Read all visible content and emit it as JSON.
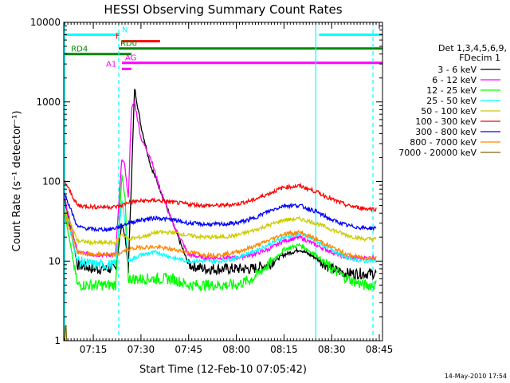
{
  "chart_data": {
    "type": "line",
    "title": "HESSI Observing Summary Count Rates",
    "xlabel": "Start Time (12-Feb-10 07:05:42)",
    "ylabel": "Count Rate (s⁻¹ detector⁻¹)",
    "yscale": "log",
    "ylim": [
      1,
      10000
    ],
    "xlim": [
      "07:05:42",
      "08:46:00"
    ],
    "x_ticks": [
      "07:15",
      "07:30",
      "07:45",
      "08:00",
      "08:15",
      "08:30",
      "08:45"
    ],
    "y_ticks": [
      "1",
      "10",
      "100",
      "1000",
      "10000"
    ],
    "legend_title": [
      "Det 1,3,4,5,6,9,",
      "FDecim 1"
    ],
    "legend_position": "right",
    "series": [
      {
        "name": "3 - 6 keV",
        "color": "#000000",
        "x": [
          "07:06",
          "07:10",
          "07:15",
          "07:20",
          "07:22",
          "07:24",
          "07:25",
          "07:26",
          "07:27",
          "07:28",
          "07:30",
          "07:33",
          "07:36",
          "07:40",
          "07:45",
          "07:50",
          "07:55",
          "08:00",
          "08:05",
          "08:10",
          "08:15",
          "08:20",
          "08:25",
          "08:30",
          "08:35",
          "08:40",
          "08:44"
        ],
        "y": [
          60,
          9,
          8,
          8,
          8,
          30,
          20,
          8,
          100,
          1500,
          500,
          160,
          80,
          30,
          9,
          8,
          8,
          8,
          8,
          9,
          12,
          14,
          11,
          8,
          7,
          7,
          7
        ]
      },
      {
        "name": "6 - 12 keV",
        "color": "#ff00ff",
        "x": [
          "07:06",
          "07:10",
          "07:15",
          "07:20",
          "07:22",
          "07:24",
          "07:25",
          "07:26",
          "07:27",
          "07:28",
          "07:30",
          "07:33",
          "07:36",
          "07:40",
          "07:45",
          "07:50",
          "07:55",
          "08:00",
          "08:05",
          "08:10",
          "08:15",
          "08:20",
          "08:25",
          "08:30",
          "08:35",
          "08:40",
          "08:44"
        ],
        "y": [
          60,
          13,
          12,
          12,
          12,
          200,
          150,
          60,
          800,
          1000,
          350,
          200,
          80,
          30,
          12,
          11,
          11,
          11,
          12,
          14,
          18,
          20,
          16,
          13,
          11,
          11,
          11
        ]
      },
      {
        "name": "12 - 25 keV",
        "color": "#00ff00",
        "x": [
          "07:06",
          "07:10",
          "07:15",
          "07:20",
          "07:22",
          "07:24",
          "07:25",
          "07:26",
          "07:28",
          "07:30",
          "07:35",
          "07:40",
          "07:45",
          "07:50",
          "07:55",
          "08:00",
          "08:05",
          "08:10",
          "08:15",
          "08:20",
          "08:25",
          "08:30",
          "08:35",
          "08:40",
          "08:44"
        ],
        "y": [
          40,
          5,
          5,
          5,
          5,
          120,
          60,
          6,
          6,
          6,
          6,
          6,
          5,
          5,
          5,
          5,
          6,
          9,
          14,
          16,
          12,
          8,
          6,
          5,
          5
        ]
      },
      {
        "name": "25 - 50 keV",
        "color": "#00ffff",
        "x": [
          "07:06",
          "07:10",
          "07:15",
          "07:20",
          "07:22",
          "07:24",
          "07:25",
          "07:26",
          "07:30",
          "07:35",
          "07:40",
          "07:45",
          "07:50",
          "07:55",
          "08:00",
          "08:05",
          "08:10",
          "08:15",
          "08:20",
          "08:25",
          "08:30",
          "08:35",
          "08:40",
          "08:44"
        ],
        "y": [
          45,
          10,
          9,
          9,
          9,
          60,
          30,
          10,
          12,
          13,
          11,
          10,
          10,
          10,
          11,
          13,
          16,
          20,
          22,
          18,
          14,
          11,
          10,
          10
        ]
      },
      {
        "name": "50 - 100 keV",
        "color": "#cccc00",
        "x": [
          "07:06",
          "07:10",
          "07:15",
          "07:20",
          "07:22",
          "07:24",
          "07:26",
          "07:30",
          "07:35",
          "07:40",
          "07:45",
          "07:50",
          "07:55",
          "08:00",
          "08:05",
          "08:10",
          "08:15",
          "08:20",
          "08:25",
          "08:30",
          "08:35",
          "08:40",
          "08:44"
        ],
        "y": [
          45,
          18,
          17,
          17,
          17,
          22,
          19,
          20,
          23,
          23,
          21,
          20,
          20,
          21,
          24,
          28,
          33,
          34,
          30,
          25,
          21,
          19,
          19
        ]
      },
      {
        "name": "100 - 300 keV",
        "color": "#ff0000",
        "x": [
          "07:06",
          "07:10",
          "07:15",
          "07:20",
          "07:22",
          "07:24",
          "07:26",
          "07:30",
          "07:35",
          "07:40",
          "07:45",
          "07:50",
          "07:55",
          "08:00",
          "08:05",
          "08:10",
          "08:15",
          "08:20",
          "08:25",
          "08:30",
          "08:35",
          "08:40",
          "08:44"
        ],
        "y": [
          100,
          50,
          48,
          48,
          48,
          50,
          55,
          57,
          58,
          55,
          52,
          50,
          50,
          52,
          58,
          70,
          85,
          88,
          75,
          60,
          50,
          46,
          45
        ]
      },
      {
        "name": "300 - 800 keV",
        "color": "#0000ff",
        "x": [
          "07:06",
          "07:10",
          "07:15",
          "07:20",
          "07:22",
          "07:24",
          "07:26",
          "07:30",
          "07:35",
          "07:40",
          "07:45",
          "07:50",
          "07:55",
          "08:00",
          "08:05",
          "08:10",
          "08:15",
          "08:20",
          "08:25",
          "08:30",
          "08:35",
          "08:40",
          "08:44"
        ],
        "y": [
          70,
          27,
          25,
          25,
          26,
          28,
          30,
          33,
          35,
          33,
          30,
          29,
          29,
          30,
          34,
          42,
          50,
          50,
          42,
          33,
          28,
          26,
          26
        ]
      },
      {
        "name": "800 - 7000 keV",
        "color": "#ff8800",
        "x": [
          "07:06",
          "07:10",
          "07:15",
          "07:20",
          "07:22",
          "07:24",
          "07:26",
          "07:30",
          "07:35",
          "07:40",
          "07:45",
          "07:50",
          "07:55",
          "08:00",
          "08:05",
          "08:10",
          "08:15",
          "08:20",
          "08:25",
          "08:30",
          "08:35",
          "08:40",
          "08:44"
        ],
        "y": [
          40,
          13,
          12,
          12,
          12,
          13,
          14,
          15,
          15,
          14,
          13,
          12,
          12,
          13,
          15,
          18,
          22,
          23,
          19,
          15,
          12,
          11,
          11
        ]
      },
      {
        "name": "7000 - 20000 keV",
        "color": "#886600",
        "x": [
          "07:06",
          "07:06:20",
          "07:06:40"
        ],
        "y": [
          1,
          2,
          1
        ]
      }
    ],
    "state_bars": [
      {
        "label": "N",
        "color": "#00ffff",
        "y": 7000,
        "segments": [
          [
            "07:05:42",
            "07:23:00"
          ],
          [
            "08:26:00",
            "08:46:00"
          ]
        ],
        "label_at": "07:24:00"
      },
      {
        "label": "F",
        "color": "#ff0000",
        "y": 5800,
        "segments": [
          [
            "07:24:00",
            "07:36:00"
          ]
        ],
        "label_at": "07:22:00"
      },
      {
        "label": "RD0",
        "color": "#008800",
        "y": 4700,
        "segments": [
          [
            "07:23:00",
            "08:46:00"
          ]
        ],
        "label_at": "07:23:30"
      },
      {
        "label": "RD4",
        "color": "#008800",
        "y": 4000,
        "segments": [
          [
            "07:05:42",
            "07:27:00"
          ]
        ],
        "label_at": "07:08:00"
      },
      {
        "label": "AG",
        "color": "#ff00ff",
        "y": 3100,
        "segments": [
          [
            "07:24:00",
            "08:46:00"
          ]
        ],
        "label_at": "07:25:00"
      },
      {
        "label": "A1",
        "color": "#ff00ff",
        "y": 2600,
        "segments": [
          [
            "07:24:00",
            "07:27:00"
          ]
        ],
        "label_at": "07:19:00"
      }
    ],
    "vertical_lines": [
      {
        "x": "07:06:00",
        "color": "#00ffff",
        "style": "solid"
      },
      {
        "x": "07:23:00",
        "color": "#00ffff",
        "style": "dashed"
      },
      {
        "x": "08:25:00",
        "color": "#00ffff",
        "style": "solid"
      },
      {
        "x": "08:43:00",
        "color": "#00ffff",
        "style": "dashed"
      }
    ],
    "grid": false
  },
  "footer": {
    "timestamp": "14-May-2010 17:54"
  }
}
